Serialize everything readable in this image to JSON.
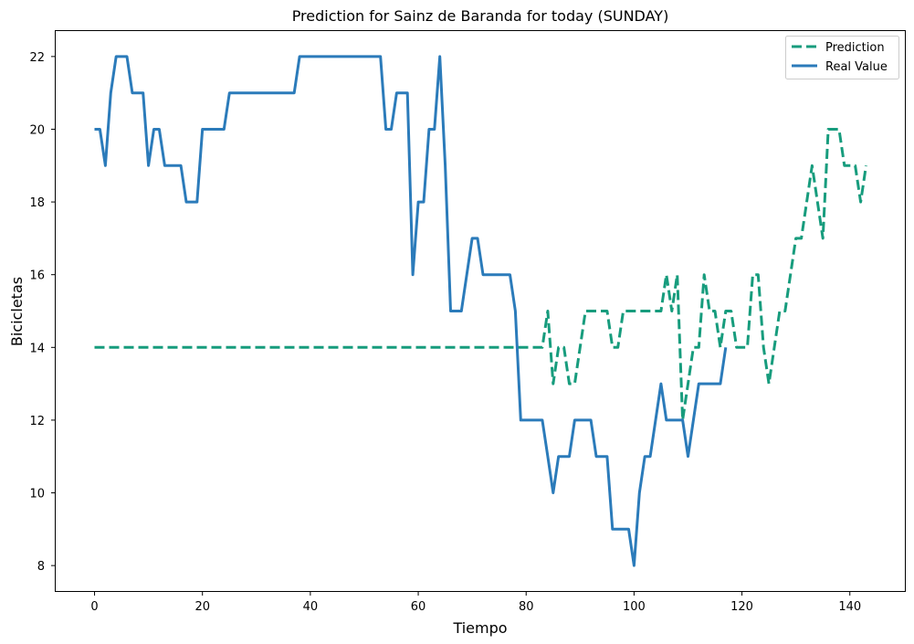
{
  "chart_data": {
    "type": "line",
    "title": "Prediction for Sainz de Baranda for today (SUNDAY)",
    "xlabel": "Tiempo",
    "ylabel": "Bicicletas",
    "xlim": [
      -7.2,
      150.2
    ],
    "ylim": [
      7.3,
      22.7
    ],
    "xticks": [
      0,
      20,
      40,
      60,
      80,
      100,
      120,
      140
    ],
    "yticks": [
      8,
      10,
      12,
      14,
      16,
      18,
      20,
      22
    ],
    "grid": false,
    "legend_position": "top-right",
    "series": [
      {
        "name": "Prediction",
        "color": "#179c7d",
        "dash": "dashed",
        "x": [
          0,
          83,
          84,
          85,
          86,
          87,
          88,
          89,
          90,
          91,
          92,
          93,
          94,
          95,
          96,
          97,
          98,
          99,
          100,
          101,
          102,
          103,
          104,
          105,
          106,
          107,
          108,
          109,
          110,
          111,
          112,
          113,
          114,
          115,
          116,
          117,
          118,
          119,
          120,
          121,
          122,
          123,
          124,
          125,
          126,
          127,
          128,
          129,
          130,
          131,
          132,
          133,
          134,
          135,
          136,
          137,
          138,
          139,
          140,
          141,
          142,
          143
        ],
        "y": [
          14,
          14,
          15,
          13,
          14,
          14,
          13,
          13,
          14,
          15,
          15,
          15,
          15,
          15,
          14,
          14,
          15,
          15,
          15,
          15,
          15,
          15,
          15,
          15,
          16,
          15,
          16,
          12,
          13,
          14,
          14,
          16,
          15,
          15,
          14,
          15,
          15,
          14,
          14,
          14,
          16,
          16,
          14,
          13,
          14,
          15,
          15,
          16,
          17,
          17,
          18,
          19,
          18,
          17,
          20,
          20,
          20,
          19,
          19,
          19,
          18,
          19
        ]
      },
      {
        "name": "Real Value",
        "color": "#2b7bba",
        "dash": "solid",
        "x": [
          0,
          1,
          2,
          3,
          4,
          5,
          6,
          7,
          8,
          9,
          10,
          11,
          12,
          13,
          14,
          15,
          16,
          17,
          18,
          19,
          20,
          21,
          22,
          23,
          24,
          25,
          37,
          38,
          53,
          54,
          55,
          56,
          57,
          58,
          59,
          60,
          61,
          62,
          63,
          64,
          65,
          66,
          67,
          68,
          69,
          70,
          71,
          72,
          73,
          74,
          75,
          76,
          77,
          78,
          79,
          80,
          81,
          82,
          83,
          84,
          85,
          86,
          87,
          88,
          89,
          90,
          91,
          92,
          93,
          94,
          95,
          96,
          97,
          98,
          99,
          100,
          101,
          102,
          103,
          104,
          105,
          106,
          107,
          108,
          109,
          110,
          111,
          112,
          113,
          114,
          115,
          116,
          117
        ],
        "y": [
          20,
          20,
          19,
          21,
          22,
          22,
          22,
          21,
          21,
          21,
          19,
          20,
          20,
          19,
          19,
          19,
          19,
          18,
          18,
          18,
          20,
          20,
          20,
          20,
          20,
          21,
          21,
          22,
          22,
          20,
          20,
          21,
          21,
          21,
          16,
          18,
          18,
          20,
          20,
          22,
          19,
          15,
          15,
          15,
          16,
          17,
          17,
          16,
          16,
          16,
          16,
          16,
          16,
          15,
          12,
          12,
          12,
          12,
          12,
          11,
          10,
          11,
          11,
          11,
          12,
          12,
          12,
          12,
          11,
          11,
          11,
          9,
          9,
          9,
          9,
          8,
          10,
          11,
          11,
          12,
          13,
          12,
          12,
          12,
          12,
          11,
          12,
          13,
          13,
          13,
          13,
          13,
          14
        ]
      }
    ]
  }
}
